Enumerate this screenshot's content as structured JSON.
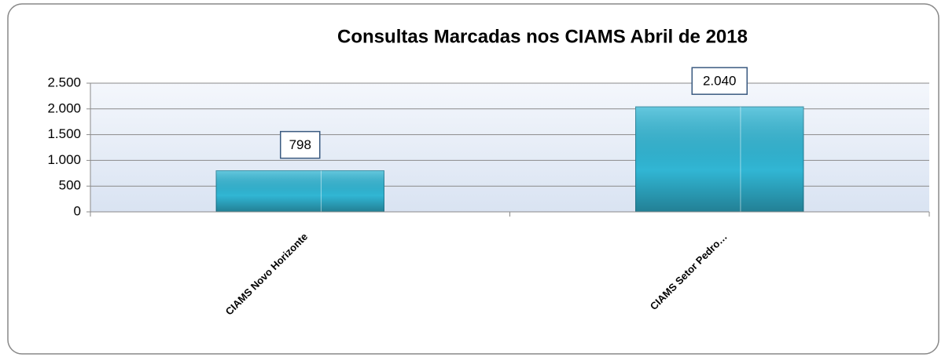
{
  "chart_data": {
    "type": "bar",
    "title": "Consultas Marcadas nos CIAMS Abril de 2018",
    "categories": [
      "CIAMS Novo Horizonte",
      "CIAMS Setor Pedro…"
    ],
    "values": [
      798,
      2040
    ],
    "value_labels": [
      "798",
      "2.040"
    ],
    "color": "#31b6d4",
    "ylim": [
      0,
      2500
    ],
    "yticks": [
      0,
      500,
      {
        "value": 1000,
        "label": "1.000"
      },
      {
        "value": 1500,
        "label": "1.500"
      },
      {
        "value": 2000,
        "label": "2.000"
      },
      {
        "value": 2500,
        "label": "2.500"
      }
    ],
    "grid": true
  }
}
